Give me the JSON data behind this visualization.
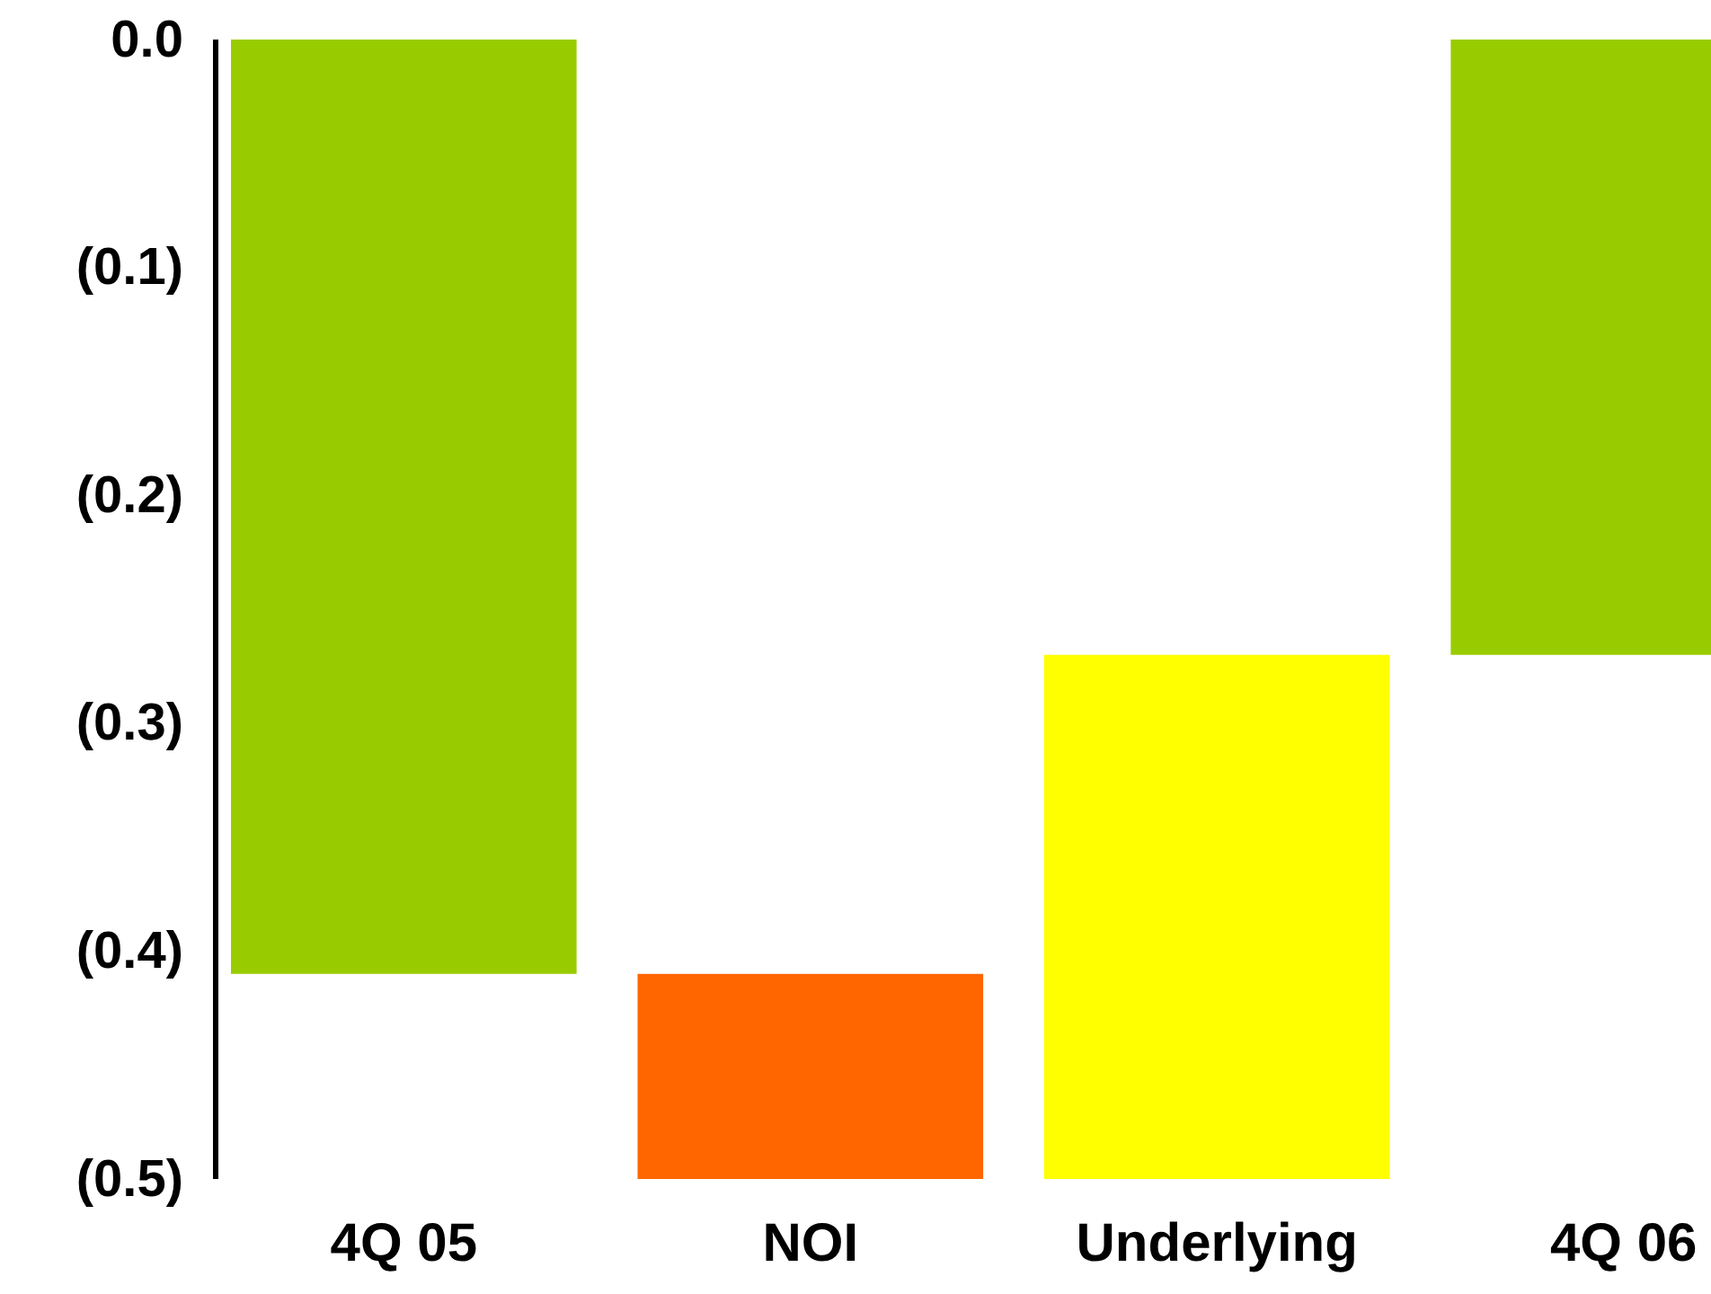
{
  "chart_data": {
    "type": "bar",
    "categories": [
      "4Q 05",
      "NOI",
      "Underlying",
      "4Q 06"
    ],
    "values": [
      -0.41,
      -0.09,
      0.23,
      -0.27
    ],
    "base": [
      0,
      -0.41,
      -0.5,
      0
    ],
    "colors": [
      "#99cc00",
      "#ff6600",
      "#ffff00",
      "#99cc00"
    ],
    "ylim": [
      -0.5,
      0
    ],
    "yticks": [
      {
        "value": 0,
        "label": "0.0"
      },
      {
        "value": -0.1,
        "label": "(0.1)"
      },
      {
        "value": -0.2,
        "label": "(0.2)"
      },
      {
        "value": -0.3,
        "label": "(0.3)"
      },
      {
        "value": -0.4,
        "label": "(0.4)"
      },
      {
        "value": -0.5,
        "label": "(0.5)"
      }
    ]
  }
}
